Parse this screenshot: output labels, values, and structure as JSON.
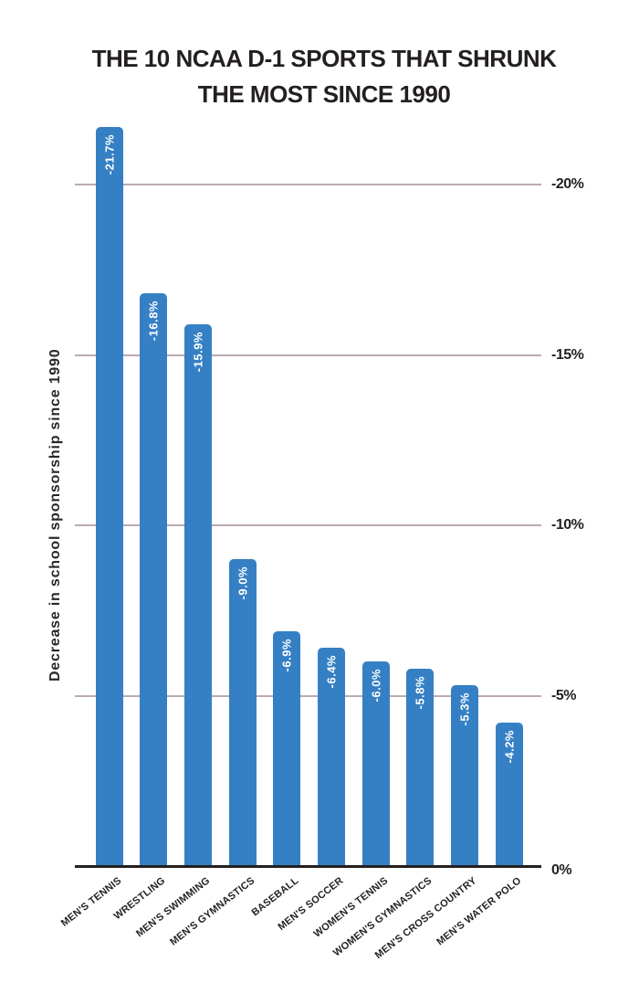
{
  "title_lines": [
    "THE 10 NCAA D-1 SPORTS THAT SHRUNK",
    "THE MOST SINCE 1990"
  ],
  "y_axis_label": "Decrease in school sponsorship since 1990",
  "colors": {
    "bar": "#3580c4",
    "gridline": "#bcaaae",
    "axis": "#241f20",
    "title_text": "#231f20",
    "bar_label_text": "#ffffff"
  },
  "chart_data": {
    "type": "bar",
    "orientation": "vertical",
    "title": "THE 10 NCAA D-1 SPORTS THAT SHRUNK THE MOST SINCE 1990",
    "ylabel": "Decrease in school sponsorship since 1990",
    "xlabel": "",
    "categories": [
      "MEN'S TENNIS",
      "WRESTLING",
      "MEN'S SWIMMING",
      "MEN'S GYMNASTICS",
      "BASEBALL",
      "MEN'S SOCCER",
      "WOMEN'S TENNIS",
      "WOMEN'S GYMNASTICS",
      "MEN'S CROSS COUNTRY",
      "MEN'S WATER POLO"
    ],
    "values": [
      -21.7,
      -16.8,
      -15.9,
      -9.0,
      -6.9,
      -6.4,
      -6.0,
      -5.8,
      -5.3,
      -4.2
    ],
    "bar_labels": [
      "-21.7%",
      "-16.8%",
      "-15.9%",
      "-9.0%",
      "-6.9%",
      "-6.4%",
      "-6.0%",
      "-5.8%",
      "-5.3%",
      "-4.2%"
    ],
    "yticks": [
      {
        "value": -20,
        "label": "-20%"
      },
      {
        "value": -15,
        "label": "-15%"
      },
      {
        "value": -10,
        "label": "-10%"
      },
      {
        "value": -5,
        "label": "-5%"
      },
      {
        "value": 0,
        "label": "0%"
      }
    ],
    "ylim": [
      -22,
      0
    ],
    "grid": "horizontal",
    "legend": "none",
    "bar_label_position": "inside-top-vertical"
  }
}
